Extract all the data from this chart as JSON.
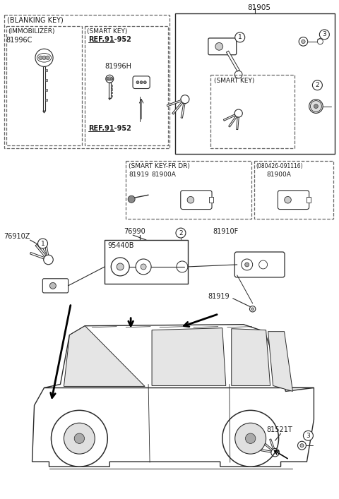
{
  "bg_color": "#ffffff",
  "lc": "#2a2a2a",
  "tc": "#1a1a1a",
  "dc": "#666666",
  "figsize": [
    4.8,
    7.07
  ],
  "dpi": 100,
  "labels": {
    "blanking_key": "(BLANKING KEY)",
    "immobilizer": "(IMMOBILIZER)",
    "immo_pn": "81996C",
    "smart_key_lbl": "(SMART KEY)",
    "ref1": "REF.91-952",
    "h_pn": "81996H",
    "ref2": "REF.91-952",
    "p81905": "81905",
    "smart_key_box": "(SMART KEY)",
    "smart_key_fr_dr": "(SMART KEY-FR DR)",
    "p81919a": "81919",
    "p81900Aa": "81900A",
    "date_range": "(080426-091116)",
    "p81900Ab": "81900A",
    "p76990": "76990",
    "p76910Z": "76910Z",
    "p95440B": "95440B",
    "p81910F": "81910F",
    "p81919b": "81919",
    "p81521T": "81521T"
  }
}
